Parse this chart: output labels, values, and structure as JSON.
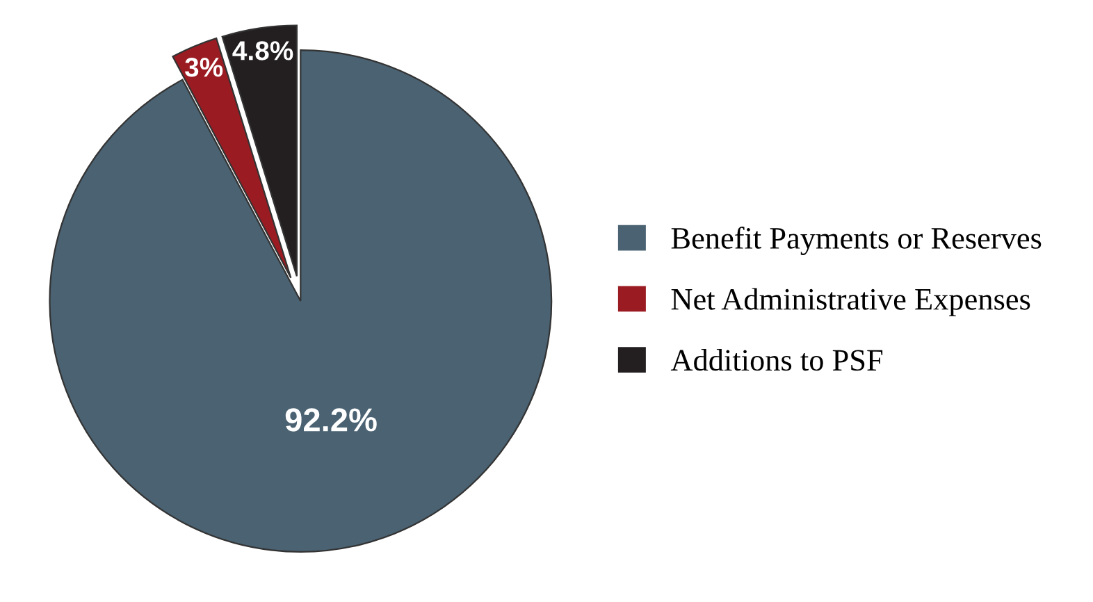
{
  "chart_data": {
    "type": "pie",
    "categories": [
      "Benefit Payments or Reserves",
      "Net Administrative Expenses",
      "Additions to PSF"
    ],
    "values": [
      92.2,
      3,
      4.8
    ],
    "value_labels": [
      "92.2%",
      "3%",
      "4.8%"
    ],
    "colors": [
      "#4a6272",
      "#9b1b22",
      "#231f20"
    ],
    "legend": "right"
  }
}
